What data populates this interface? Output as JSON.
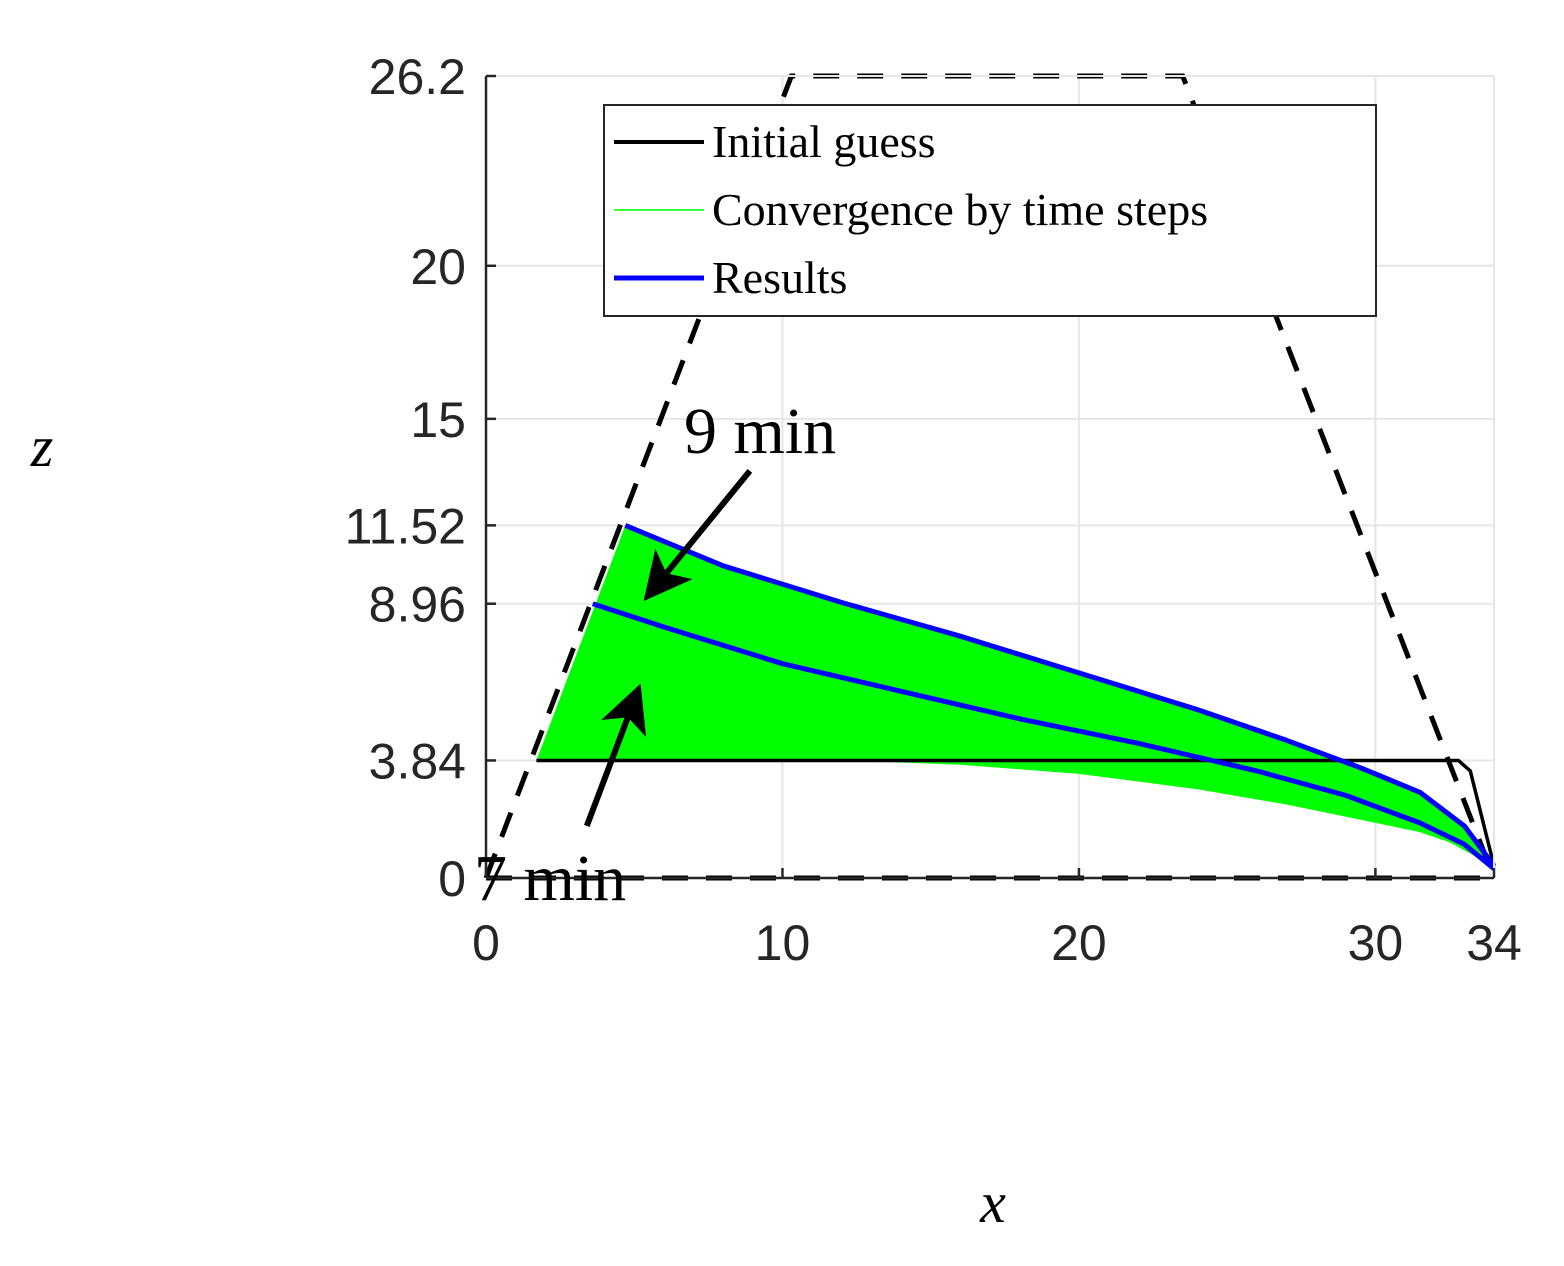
{
  "chart_data": {
    "type": "line",
    "title": "",
    "xlabel": "x",
    "ylabel": "z",
    "xlim": [
      0,
      34
    ],
    "ylim": [
      0,
      26.2
    ],
    "xticks": [
      0,
      10,
      20,
      30,
      34
    ],
    "xtick_labels": [
      "0",
      "10",
      "20",
      "30",
      "34"
    ],
    "yticks": [
      0,
      3.84,
      8.96,
      11.52,
      15,
      20,
      26.2
    ],
    "ytick_labels": [
      "0",
      "3.84",
      "8.96",
      "11.52",
      "15",
      "20",
      "26.2"
    ],
    "grid": true,
    "legend_position": "top",
    "colors": {
      "initial": "#000000",
      "convergence": "#00ff00",
      "results": "#0000ff",
      "boundary": "#000000",
      "grid": "#e6e6e6"
    },
    "boundary": {
      "style": "dashed",
      "x": [
        0,
        10.3,
        23.5,
        34
      ],
      "z": [
        0,
        26.2,
        26.2,
        0
      ],
      "base": {
        "x": [
          0,
          34
        ],
        "z": [
          0,
          0
        ]
      }
    },
    "series": [
      {
        "name": "Initial guess",
        "style": "solid-thick",
        "x": [
          1.7,
          32.8,
          33.2,
          34
        ],
        "z": [
          3.84,
          3.84,
          3.5,
          0.4
        ]
      },
      {
        "name": "Convergence by time steps",
        "style": "thin-fill",
        "outer_x": [
          1.7,
          4.7,
          8,
          12,
          16,
          20,
          24,
          27,
          29.5,
          31.5,
          33,
          34
        ],
        "outer_z": [
          3.84,
          11.52,
          10.2,
          9.0,
          7.9,
          6.7,
          5.5,
          4.5,
          3.6,
          2.8,
          1.7,
          0.4
        ],
        "inner_x": [
          1.7,
          8,
          12,
          16,
          20,
          24,
          27,
          29.5,
          31.5,
          33,
          34
        ],
        "inner_z": [
          3.84,
          3.84,
          3.84,
          3.7,
          3.4,
          2.9,
          2.4,
          1.9,
          1.5,
          1.0,
          0.4
        ]
      },
      {
        "name": "Results",
        "style": "solid-thick",
        "curves": [
          {
            "label": "9 min",
            "x": [
              4.7,
              8,
              12,
              16,
              20,
              24,
              27,
              29.5,
              31.5,
              33,
              34
            ],
            "z": [
              11.52,
              10.2,
              9.0,
              7.9,
              6.7,
              5.5,
              4.5,
              3.6,
              2.8,
              1.7,
              0.4
            ]
          },
          {
            "label": "7 min",
            "x": [
              3.6,
              6,
              10,
              14,
              18,
              22,
              26,
              29,
              31.5,
              33,
              34
            ],
            "z": [
              8.96,
              8.2,
              7.0,
              6.1,
              5.2,
              4.4,
              3.5,
              2.7,
              1.8,
              1.1,
              0.3
            ]
          }
        ]
      }
    ],
    "annotations": [
      {
        "text": "9 min",
        "arrow_from": [
          8.9,
          13.3
        ],
        "arrow_to": [
          5.7,
          9.5
        ]
      },
      {
        "text": "7 min",
        "arrow_from": [
          3.4,
          1.7
        ],
        "arrow_to": [
          5.0,
          5.8
        ]
      }
    ]
  }
}
